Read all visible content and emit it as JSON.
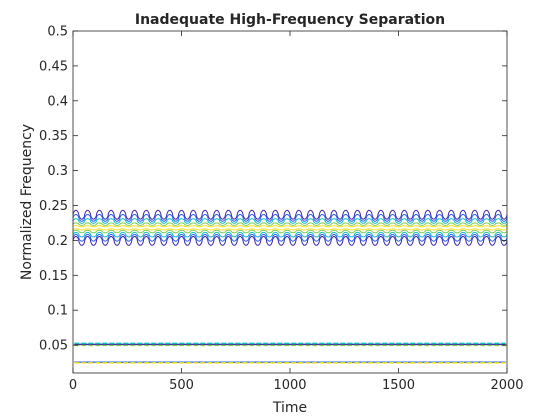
{
  "chart_data": {
    "type": "contour",
    "title": "Inadequate High-Frequency Separation",
    "xlabel": "Time",
    "ylabel": "Normalized Frequency",
    "xlim": [
      0,
      2000
    ],
    "ylim": [
      0.01,
      0.5
    ],
    "xticks": [
      0,
      500,
      1000,
      1500,
      2000
    ],
    "xtick_labels": [
      "0",
      "500",
      "1000",
      "1500",
      "2000"
    ],
    "yticks": [
      0.05,
      0.1,
      0.15,
      0.2,
      0.25,
      0.3,
      0.35,
      0.4,
      0.45,
      0.5
    ],
    "ytick_labels": [
      "0.05",
      "0.1",
      "0.15",
      "0.2",
      "0.25",
      "0.3",
      "0.35",
      "0.4",
      "0.45",
      "0.5"
    ],
    "grid": false,
    "box": true,
    "colormap": [
      "#3e26a8",
      "#2c60f7",
      "#13b9c4",
      "#7ccd55",
      "#f6e31b"
    ],
    "components": [
      {
        "kind": "oscillating",
        "center_frequency": 0.218,
        "excursion": 0.025,
        "oscillation_cycles": 37,
        "contour_levels": [
          {
            "offset": 0.025,
            "color": "#3e26a8"
          },
          {
            "offset": 0.019,
            "color": "#2c60f7"
          },
          {
            "offset": 0.013,
            "color": "#13b9c4"
          },
          {
            "offset": 0.007,
            "color": "#7ccd55"
          },
          {
            "offset": 0.003,
            "color": "#f6e31b"
          }
        ]
      },
      {
        "kind": "steady",
        "contour_levels": [
          {
            "frequency": 0.051,
            "color": "#3e26a8"
          },
          {
            "frequency": 0.0525,
            "color": "#13b9c4"
          },
          {
            "frequency": 0.0495,
            "color": "#7ccd55"
          }
        ]
      },
      {
        "kind": "steady",
        "contour_levels": [
          {
            "frequency": 0.0255,
            "color": "#2c60f7"
          },
          {
            "frequency": 0.0245,
            "color": "#f6e31b"
          }
        ]
      }
    ]
  }
}
